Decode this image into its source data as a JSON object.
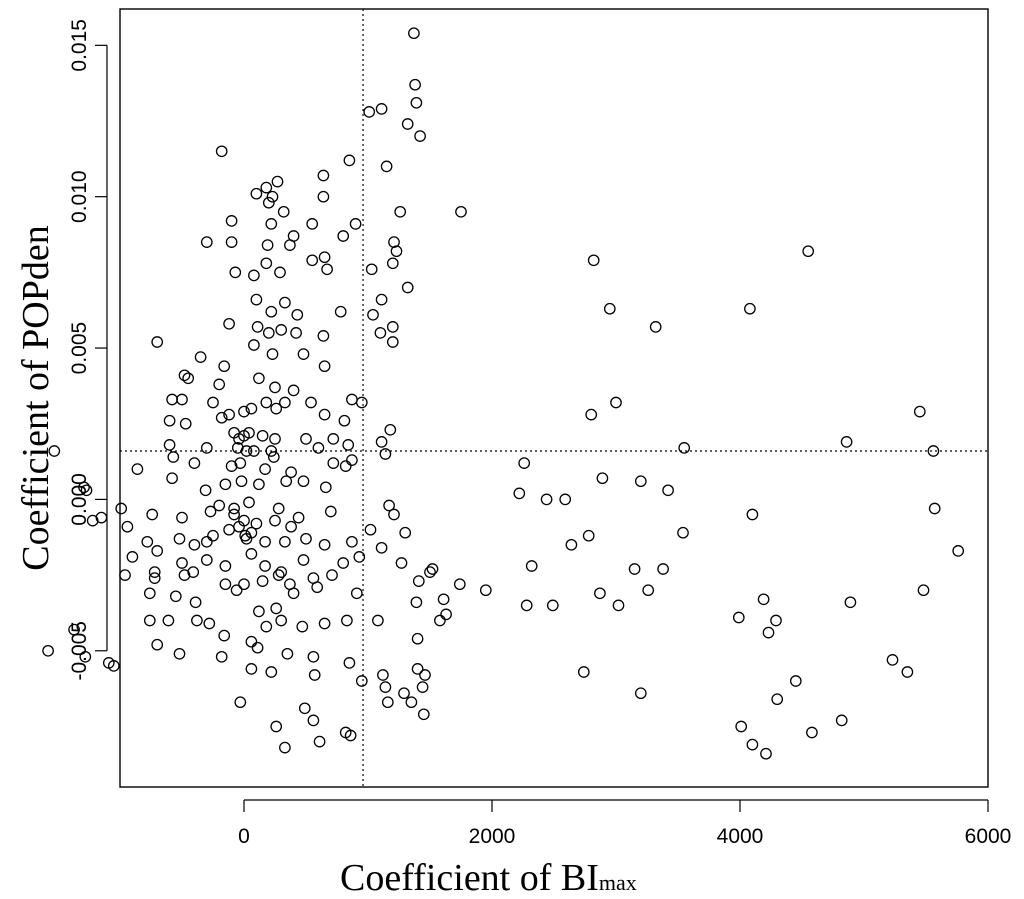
{
  "chart_data": {
    "type": "scatter",
    "xlabel": {
      "main": "Coefficient of ",
      "sub_main": "BI",
      "sub": "max"
    },
    "ylabel": "Coefficient of  POPden",
    "xlim": [
      -1000,
      6000
    ],
    "ylim": [
      -0.0095,
      0.0162
    ],
    "xticks": [
      0,
      2000,
      4000,
      6000
    ],
    "xtick_labels": [
      "0",
      "2000",
      "4000",
      "6000"
    ],
    "yticks": [
      -0.005,
      0.0,
      0.005,
      0.01,
      0.015
    ],
    "ytick_labels": [
      "-0.005",
      "0.000",
      "0.005",
      "0.010",
      "0.015"
    ],
    "reference_lines": {
      "vertical_x": 960,
      "horizontal_y": 0.0016
    },
    "grid": false,
    "marker": "open-circle",
    "points": [
      [
        1370,
        0.0154
      ],
      [
        1380,
        0.0137
      ],
      [
        1390,
        0.0131
      ],
      [
        1420,
        0.012
      ],
      [
        1320,
        0.0124
      ],
      [
        1110,
        0.0129
      ],
      [
        1010,
        0.0128
      ],
      [
        -180,
        0.0115
      ],
      [
        850,
        0.0112
      ],
      [
        1150,
        0.011
      ],
      [
        640,
        0.0107
      ],
      [
        270,
        0.0105
      ],
      [
        100,
        0.0101
      ],
      [
        180,
        0.0103
      ],
      [
        200,
        0.0098
      ],
      [
        230,
        0.01
      ],
      [
        320,
        0.0095
      ],
      [
        640,
        0.01
      ],
      [
        1260,
        0.0095
      ],
      [
        1750,
        0.0095
      ],
      [
        -100,
        0.0092
      ],
      [
        220,
        0.0091
      ],
      [
        400,
        0.0087
      ],
      [
        550,
        0.0091
      ],
      [
        800,
        0.0087
      ],
      [
        900,
        0.0091
      ],
      [
        -300,
        0.0085
      ],
      [
        -100,
        0.0085
      ],
      [
        190,
        0.0084
      ],
      [
        370,
        0.0084
      ],
      [
        1210,
        0.0085
      ],
      [
        1230,
        0.0082
      ],
      [
        650,
        0.008
      ],
      [
        550,
        0.0079
      ],
      [
        180,
        0.0078
      ],
      [
        -70,
        0.0075
      ],
      [
        80,
        0.0074
      ],
      [
        290,
        0.0075
      ],
      [
        670,
        0.0076
      ],
      [
        1030,
        0.0076
      ],
      [
        1200,
        0.0078
      ],
      [
        1320,
        0.007
      ],
      [
        100,
        0.0066
      ],
      [
        220,
        0.0062
      ],
      [
        330,
        0.0065
      ],
      [
        430,
        0.0061
      ],
      [
        780,
        0.0062
      ],
      [
        1040,
        0.0061
      ],
      [
        1110,
        0.0066
      ],
      [
        1200,
        0.0057
      ],
      [
        -120,
        0.0058
      ],
      [
        110,
        0.0057
      ],
      [
        200,
        0.0055
      ],
      [
        300,
        0.0056
      ],
      [
        420,
        0.0055
      ],
      [
        640,
        0.0054
      ],
      [
        1100,
        0.0055
      ],
      [
        1200,
        0.0052
      ],
      [
        80,
        0.0051
      ],
      [
        -700,
        0.0052
      ],
      [
        230,
        0.0048
      ],
      [
        480,
        0.0048
      ],
      [
        -350,
        0.0047
      ],
      [
        -160,
        0.0044
      ],
      [
        650,
        0.0044
      ],
      [
        2820,
        0.0079
      ],
      [
        2950,
        0.0063
      ],
      [
        3320,
        0.0057
      ],
      [
        4080,
        0.0063
      ],
      [
        4550,
        0.0082
      ],
      [
        -480,
        0.0041
      ],
      [
        -450,
        0.004
      ],
      [
        -200,
        0.0038
      ],
      [
        120,
        0.004
      ],
      [
        250,
        0.0037
      ],
      [
        400,
        0.0036
      ],
      [
        -250,
        0.0032
      ],
      [
        -580,
        0.0033
      ],
      [
        -500,
        0.0033
      ],
      [
        330,
        0.0032
      ],
      [
        540,
        0.0032
      ],
      [
        870,
        0.0033
      ],
      [
        950,
        0.0032
      ],
      [
        -600,
        0.0026
      ],
      [
        -470,
        0.0025
      ],
      [
        -180,
        0.0027
      ],
      [
        -120,
        0.0028
      ],
      [
        0,
        0.0029
      ],
      [
        60,
        0.003
      ],
      [
        180,
        0.0032
      ],
      [
        260,
        0.003
      ],
      [
        650,
        0.0028
      ],
      [
        810,
        0.0026
      ],
      [
        -80,
        0.0022
      ],
      [
        -40,
        0.002
      ],
      [
        0,
        0.0021
      ],
      [
        40,
        0.0022
      ],
      [
        150,
        0.0021
      ],
      [
        250,
        0.002
      ],
      [
        500,
        0.002
      ],
      [
        720,
        0.002
      ],
      [
        1180,
        0.0023
      ],
      [
        -1530,
        0.0016
      ],
      [
        -600,
        0.0018
      ],
      [
        -300,
        0.0017
      ],
      [
        -50,
        0.0017
      ],
      [
        20,
        0.0016
      ],
      [
        80,
        0.0016
      ],
      [
        220,
        0.0016
      ],
      [
        240,
        0.0014
      ],
      [
        600,
        0.0017
      ],
      [
        840,
        0.0018
      ],
      [
        1110,
        0.0019
      ],
      [
        1140,
        0.0015
      ],
      [
        -570,
        0.0014
      ],
      [
        -400,
        0.0012
      ],
      [
        -100,
        0.0011
      ],
      [
        -30,
        0.0012
      ],
      [
        170,
        0.001
      ],
      [
        380,
        0.0009
      ],
      [
        720,
        0.0012
      ],
      [
        870,
        0.0013
      ],
      [
        820,
        0.0011
      ],
      [
        -860,
        0.001
      ],
      [
        -580,
        0.0007
      ],
      [
        -310,
        0.0003
      ],
      [
        -150,
        0.0005
      ],
      [
        -20,
        0.0006
      ],
      [
        120,
        0.0005
      ],
      [
        340,
        0.0006
      ],
      [
        480,
        0.0006
      ],
      [
        660,
        0.0004
      ],
      [
        -1290,
        0.0004
      ],
      [
        -1270,
        0.0003
      ],
      [
        -990,
        -0.0003
      ],
      [
        -1220,
        -0.0007
      ],
      [
        -1150,
        -0.0006
      ],
      [
        -940,
        -0.0009
      ],
      [
        -740,
        -0.0005
      ],
      [
        -500,
        -0.0006
      ],
      [
        -270,
        -0.0004
      ],
      [
        -80,
        -0.0005
      ],
      [
        0,
        -0.0007
      ],
      [
        100,
        -0.0008
      ],
      [
        250,
        -0.0007
      ],
      [
        440,
        -0.0006
      ],
      [
        700,
        -0.0004
      ],
      [
        1170,
        -0.0002
      ],
      [
        2260,
        0.0012
      ],
      [
        2220,
        0.0002
      ],
      [
        2440,
        0.0
      ],
      [
        2590,
        -0.0
      ],
      [
        2890,
        0.0007
      ],
      [
        3000,
        0.0032
      ],
      [
        2800,
        0.0028
      ],
      [
        3200,
        0.0006
      ],
      [
        3420,
        0.0003
      ],
      [
        3550,
        0.0017
      ],
      [
        4100,
        -0.0005
      ],
      [
        4860,
        0.0019
      ],
      [
        5450,
        0.0029
      ],
      [
        5560,
        0.0016
      ],
      [
        5570,
        -0.0003
      ],
      [
        -780,
        -0.0014
      ],
      [
        -700,
        -0.0017
      ],
      [
        -520,
        -0.0013
      ],
      [
        -400,
        -0.0015
      ],
      [
        -250,
        -0.0012
      ],
      [
        -120,
        -0.001
      ],
      [
        20,
        -0.0013
      ],
      [
        60,
        -0.0011
      ],
      [
        170,
        -0.0014
      ],
      [
        330,
        -0.0014
      ],
      [
        500,
        -0.0013
      ],
      [
        650,
        -0.0015
      ],
      [
        870,
        -0.0014
      ],
      [
        1110,
        -0.0016
      ],
      [
        1300,
        -0.0011
      ],
      [
        -900,
        -0.0019
      ],
      [
        -720,
        -0.0024
      ],
      [
        -500,
        -0.0021
      ],
      [
        -300,
        -0.002
      ],
      [
        -150,
        -0.0022
      ],
      [
        60,
        -0.0018
      ],
      [
        170,
        -0.0022
      ],
      [
        300,
        -0.0024
      ],
      [
        480,
        -0.002
      ],
      [
        800,
        -0.0021
      ],
      [
        930,
        -0.0019
      ],
      [
        1270,
        -0.0021
      ],
      [
        1520,
        -0.0023
      ],
      [
        -960,
        -0.0025
      ],
      [
        -720,
        -0.0026
      ],
      [
        -480,
        -0.0025
      ],
      [
        -410,
        -0.0024
      ],
      [
        -150,
        -0.0028
      ],
      [
        0,
        -0.0028
      ],
      [
        150,
        -0.0027
      ],
      [
        280,
        -0.0025
      ],
      [
        370,
        -0.0028
      ],
      [
        560,
        -0.0026
      ],
      [
        710,
        -0.0025
      ],
      [
        1410,
        -0.0027
      ],
      [
        1500,
        -0.0024
      ],
      [
        1740,
        -0.0028
      ],
      [
        2640,
        -0.0015
      ],
      [
        2780,
        -0.0012
      ],
      [
        3150,
        -0.0023
      ],
      [
        3380,
        -0.0023
      ],
      [
        3540,
        -0.0011
      ],
      [
        2320,
        -0.0022
      ],
      [
        5760,
        -0.0017
      ],
      [
        -760,
        -0.0031
      ],
      [
        -550,
        -0.0032
      ],
      [
        -390,
        -0.0034
      ],
      [
        -280,
        -0.0041
      ],
      [
        -60,
        -0.003
      ],
      [
        120,
        -0.0037
      ],
      [
        260,
        -0.0036
      ],
      [
        400,
        -0.0031
      ],
      [
        590,
        -0.0029
      ],
      [
        910,
        -0.0031
      ],
      [
        1390,
        -0.0034
      ],
      [
        1610,
        -0.0033
      ],
      [
        1950,
        -0.003
      ],
      [
        2280,
        -0.0035
      ],
      [
        2490,
        -0.0035
      ],
      [
        2870,
        -0.0031
      ],
      [
        3020,
        -0.0035
      ],
      [
        3260,
        -0.003
      ],
      [
        4190,
        -0.0033
      ],
      [
        4890,
        -0.0034
      ],
      [
        5480,
        -0.003
      ],
      [
        -760,
        -0.004
      ],
      [
        -610,
        -0.004
      ],
      [
        -380,
        -0.004
      ],
      [
        -160,
        -0.0045
      ],
      [
        60,
        -0.0047
      ],
      [
        180,
        -0.0042
      ],
      [
        300,
        -0.004
      ],
      [
        470,
        -0.0042
      ],
      [
        650,
        -0.0041
      ],
      [
        830,
        -0.004
      ],
      [
        1080,
        -0.004
      ],
      [
        1400,
        -0.0046
      ],
      [
        1630,
        -0.0038
      ],
      [
        -1370,
        -0.0043
      ],
      [
        -1580,
        -0.005
      ],
      [
        -1280,
        -0.0052
      ],
      [
        -1090,
        -0.0054
      ],
      [
        -700,
        -0.0048
      ],
      [
        -520,
        -0.0051
      ],
      [
        -180,
        -0.0052
      ],
      [
        110,
        -0.0049
      ],
      [
        220,
        -0.0057
      ],
      [
        350,
        -0.0051
      ],
      [
        560,
        -0.0052
      ],
      [
        850,
        -0.0054
      ],
      [
        1120,
        -0.0058
      ],
      [
        1400,
        -0.0056
      ],
      [
        3990,
        -0.0039
      ],
      [
        4230,
        -0.0044
      ],
      [
        4290,
        -0.004
      ],
      [
        5230,
        -0.0053
      ],
      [
        5350,
        -0.0057
      ],
      [
        -1050,
        -0.0055
      ],
      [
        60,
        -0.0056
      ],
      [
        570,
        -0.0058
      ],
      [
        950,
        -0.006
      ],
      [
        1140,
        -0.0062
      ],
      [
        1290,
        -0.0064
      ],
      [
        1440,
        -0.0062
      ],
      [
        1460,
        -0.0058
      ],
      [
        2740,
        -0.0057
      ],
      [
        3200,
        -0.0064
      ],
      [
        4450,
        -0.006
      ],
      [
        -30,
        -0.0067
      ],
      [
        260,
        -0.0075
      ],
      [
        490,
        -0.0069
      ],
      [
        560,
        -0.0073
      ],
      [
        820,
        -0.0077
      ],
      [
        1160,
        -0.0067
      ],
      [
        1350,
        -0.0067
      ],
      [
        1450,
        -0.0071
      ],
      [
        4010,
        -0.0075
      ],
      [
        4100,
        -0.0081
      ],
      [
        4210,
        -0.0084
      ],
      [
        4300,
        -0.0066
      ],
      [
        4580,
        -0.0077
      ],
      [
        4820,
        -0.0073
      ],
      [
        330,
        -0.0082
      ],
      [
        610,
        -0.008
      ],
      [
        860,
        -0.0078
      ],
      [
        -80,
        -0.0003
      ],
      [
        -40,
        -0.0009
      ],
      [
        10,
        -0.0012
      ],
      [
        40,
        -0.0001
      ],
      [
        -200,
        -0.0002
      ],
      [
        280,
        -0.0003
      ],
      [
        380,
        -0.0009
      ],
      [
        -300,
        -0.0014
      ],
      [
        1020,
        -0.001
      ],
      [
        1210,
        -0.0005
      ],
      [
        1580,
        -0.004
      ]
    ]
  }
}
